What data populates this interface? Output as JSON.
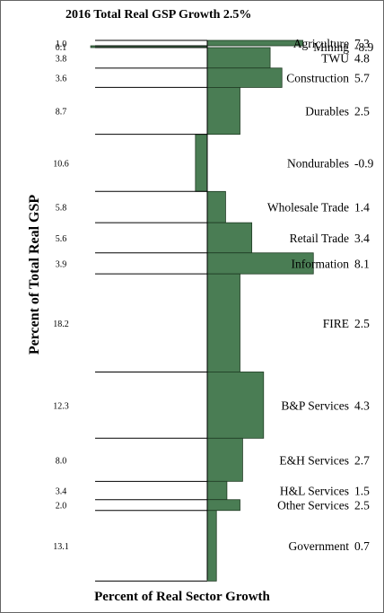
{
  "chart_data": {
    "type": "bar",
    "title": "2016 Total Real GSP Growth 2.5%",
    "ylabel": "Percent of Total Real GSP",
    "xlabel": "Percent of Real Sector Growth",
    "bar_color": "#4a7d54",
    "categories": [
      "Agriculture",
      "Mining",
      "TWU",
      "Construction",
      "Durables",
      "Nondurables",
      "Wholesale Trade",
      "Retail Trade",
      "Information",
      "FIRE",
      "B&P Services",
      "E&H Services",
      "H&L Services",
      "Other Services",
      "Government"
    ],
    "share_labels": [
      "1.0",
      "0.1",
      "3.8",
      "3.6",
      "8.7",
      "10.6",
      "5.8",
      "5.6",
      "3.9",
      "18.2",
      "12.3",
      "8.0",
      "3.4",
      "2.0",
      "13.1"
    ],
    "growth_labels": [
      "7.3",
      "-8.9",
      "4.8",
      "5.7",
      "2.5",
      "-0.9",
      "1.4",
      "3.4",
      "8.1",
      "2.5",
      "4.3",
      "2.7",
      "1.5",
      "2.5",
      "0.7"
    ],
    "shares": [
      1.0,
      0.1,
      3.8,
      3.6,
      8.7,
      10.6,
      5.8,
      5.6,
      3.9,
      18.2,
      12.3,
      8.0,
      3.4,
      2.0,
      13.1
    ],
    "values": [
      7.3,
      -8.9,
      4.8,
      5.7,
      2.5,
      -0.9,
      1.4,
      3.4,
      8.1,
      2.5,
      4.3,
      2.7,
      1.5,
      2.5,
      0.7
    ]
  }
}
